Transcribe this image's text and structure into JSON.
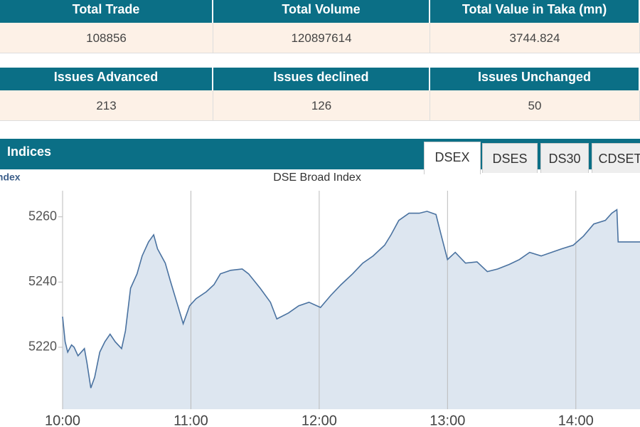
{
  "summary_tables": [
    {
      "headers": [
        "Total Trade",
        "Total Volume",
        "Total Value in Taka (mn)"
      ],
      "values": [
        108856,
        120897614,
        3744.824
      ]
    },
    {
      "headers": [
        "Issues Advanced",
        "Issues declined",
        "Issues Unchanged"
      ],
      "values": [
        213,
        126,
        50
      ]
    }
  ],
  "indices": {
    "title": "Indices",
    "tabs": [
      "DSEX",
      "DSES",
      "DS30",
      "CDSET"
    ]
  },
  "chart_data": {
    "type": "area",
    "title": "DSE Broad Index",
    "ylabel": "Index",
    "color": "#4a72a0",
    "fill": "#dde6f0",
    "grid": true,
    "x": [
      10.0,
      10.02,
      10.04,
      10.07,
      10.09,
      10.12,
      10.17,
      10.19,
      10.22,
      10.25,
      10.29,
      10.33,
      10.37,
      10.41,
      10.46,
      10.49,
      10.53,
      10.58,
      10.62,
      10.67,
      10.71,
      10.74,
      10.8,
      10.84,
      10.89,
      10.94,
      10.99,
      11.04,
      11.12,
      11.18,
      11.23,
      11.31,
      11.4,
      11.45,
      11.54,
      11.62,
      11.67,
      11.76,
      11.84,
      11.92,
      12.01,
      12.09,
      12.17,
      12.26,
      12.34,
      12.42,
      12.51,
      12.56,
      12.62,
      12.7,
      12.78,
      12.84,
      12.91,
      12.95,
      13.0,
      13.06,
      13.14,
      13.23,
      13.31,
      13.39,
      13.48,
      13.56,
      13.64,
      13.73,
      13.81,
      13.89,
      13.98,
      14.06,
      14.14,
      14.23,
      14.28,
      14.32,
      14.33,
      14.5
    ],
    "values": [
      5229.4,
      5221.7,
      5218.5,
      5220.7,
      5220.0,
      5217.4,
      5219.6,
      5215.2,
      5207.5,
      5210.8,
      5218.5,
      5221.7,
      5224.0,
      5221.7,
      5219.6,
      5225.0,
      5238.1,
      5242.5,
      5248.0,
      5252.3,
      5254.5,
      5250.2,
      5245.8,
      5240.3,
      5233.8,
      5227.2,
      5232.7,
      5234.9,
      5237.0,
      5239.2,
      5242.5,
      5243.6,
      5244.0,
      5242.5,
      5238.1,
      5233.8,
      5228.7,
      5230.5,
      5232.7,
      5233.8,
      5232.2,
      5235.9,
      5239.2,
      5242.5,
      5245.8,
      5248.0,
      5251.3,
      5254.5,
      5258.9,
      5261.1,
      5261.1,
      5261.7,
      5260.7,
      5254.5,
      5246.9,
      5249.1,
      5245.8,
      5246.2,
      5243.2,
      5244.0,
      5245.4,
      5246.9,
      5249.1,
      5248.0,
      5249.1,
      5250.2,
      5251.3,
      5254.1,
      5257.8,
      5258.9,
      5261.1,
      5262.2,
      5252.3,
      5252.3
    ],
    "xlim": [
      10,
      14.5
    ],
    "ylim": [
      5201,
      5268
    ],
    "xticks": [
      {
        "value": 10,
        "label": "10:00"
      },
      {
        "value": 11,
        "label": "11:00"
      },
      {
        "value": 12,
        "label": "12:00"
      },
      {
        "value": 13,
        "label": "13:00"
      },
      {
        "value": 14,
        "label": "14:00"
      }
    ],
    "yticks": [
      5220,
      5240,
      5260
    ]
  }
}
